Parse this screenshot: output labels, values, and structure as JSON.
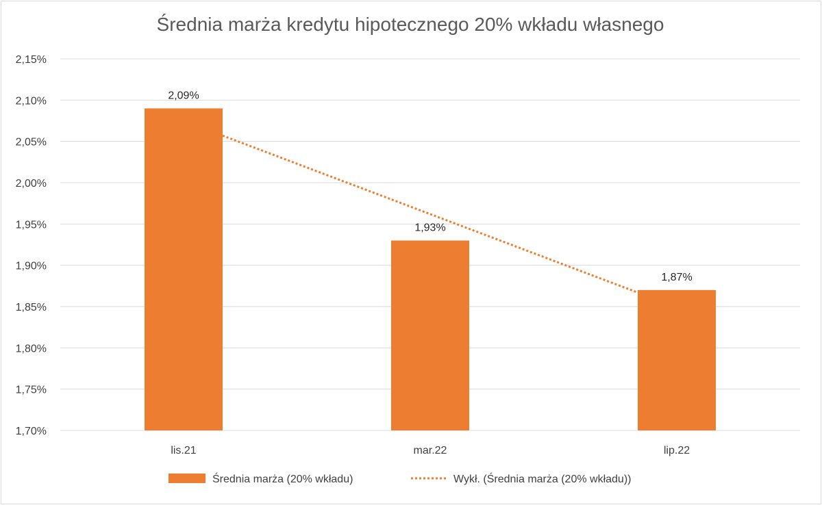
{
  "chart_data": {
    "type": "bar",
    "title": "Średnia marża kredytu hipotecznego 20% wkładu własnego",
    "categories": [
      "lis.21",
      "mar.22",
      "lip.22"
    ],
    "series": [
      {
        "name": "Średnia marża (20% wkładu)",
        "values": [
          2.09,
          1.93,
          1.87
        ],
        "data_labels": [
          "2,09%",
          "1,93%",
          "1,87%"
        ],
        "color": "#ED7D31"
      }
    ],
    "trendline": {
      "name": "Wykł. (Średnia marża (20% wkładu))",
      "type": "exponential",
      "style": "dotted",
      "color": "#ED7D31",
      "start": 2.057,
      "end": 1.867
    },
    "ylim": [
      1.7,
      2.15
    ],
    "yticks": [
      {
        "value": 1.7,
        "label": "1,70%"
      },
      {
        "value": 1.75,
        "label": "1,75%"
      },
      {
        "value": 1.8,
        "label": "1,80%"
      },
      {
        "value": 1.85,
        "label": "1,85%"
      },
      {
        "value": 1.9,
        "label": "1,90%"
      },
      {
        "value": 1.95,
        "label": "1,95%"
      },
      {
        "value": 2.0,
        "label": "2,00%"
      },
      {
        "value": 2.05,
        "label": "2,05%"
      },
      {
        "value": 2.1,
        "label": "2,10%"
      },
      {
        "value": 2.15,
        "label": "2,15%"
      }
    ],
    "grid": true,
    "legend": "bottom",
    "xlabel": "",
    "ylabel": ""
  }
}
